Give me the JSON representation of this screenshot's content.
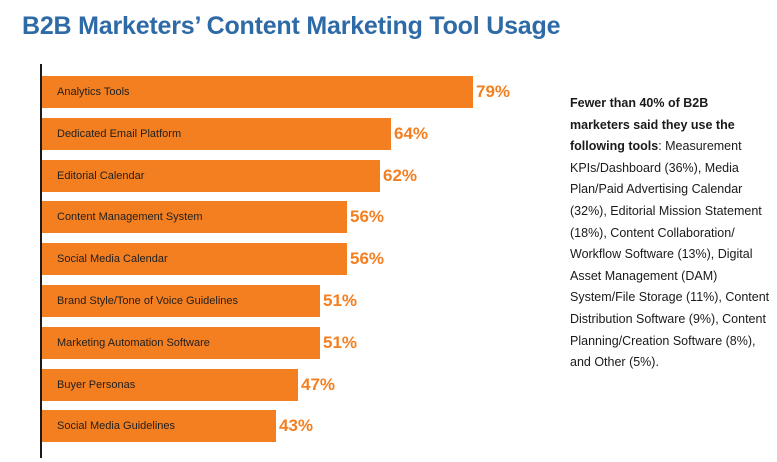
{
  "title": "B2B Marketers’ Content Marketing Tool Usage",
  "note": {
    "lead": "Fewer than 40% of B2B marketers said they use the following tools",
    "body": ": Measurement KPIs/Dashboard (36%), Media Plan/Paid Advertising Calendar (32%), Editorial Mission Statement (18%), Content Collaboration/ Workflow Software (13%), Digital Asset Management (DAM) System/File Storage (11%), Content Distribution Software (9%), Content Planning/Creation Software (8%), and Other (5%)."
  },
  "colors": {
    "bar": "#f47f20",
    "title": "#2e6aa6",
    "axis": "#1a1a1a"
  },
  "chart_data": {
    "type": "bar",
    "orientation": "horizontal",
    "title": "B2B Marketers’ Content Marketing Tool Usage",
    "categories": [
      "Analytics Tools",
      "Dedicated Email Platform",
      "Editorial Calendar",
      "Content Management System",
      "Social Media Calendar",
      "Brand Style/Tone of Voice Guidelines",
      "Marketing Automation Software",
      "Buyer Personas",
      "Social Media Guidelines"
    ],
    "values": [
      79,
      64,
      62,
      56,
      56,
      51,
      51,
      47,
      43
    ],
    "value_labels": [
      "79%",
      "64%",
      "62%",
      "56%",
      "56%",
      "51%",
      "51%",
      "47%",
      "43%"
    ],
    "unit": "%",
    "xlim": [
      0,
      100
    ],
    "grid": false,
    "legend": "none"
  }
}
